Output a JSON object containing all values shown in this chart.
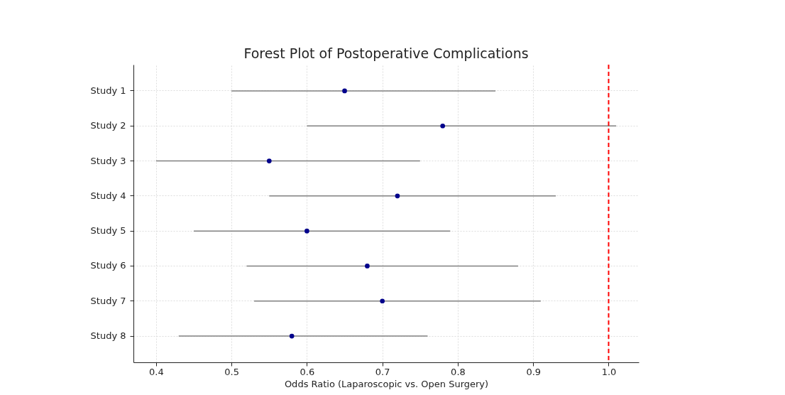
{
  "chart_data": {
    "type": "scatter",
    "orientation": "horizontal",
    "title": "Forest Plot of Postoperative Complications",
    "xlabel": "Odds Ratio (Laparoscopic vs. Open Surgery)",
    "categories": [
      "Study 1",
      "Study 2",
      "Study 3",
      "Study 4",
      "Study 5",
      "Study 6",
      "Study 7",
      "Study 8"
    ],
    "color": "#00008b",
    "values": [
      0.65,
      0.78,
      0.55,
      0.72,
      0.6,
      0.68,
      0.7,
      0.58
    ],
    "errors": [
      [
        0.5,
        0.85
      ],
      [
        0.6,
        1.01
      ],
      [
        0.4,
        0.75
      ],
      [
        0.55,
        0.93
      ],
      [
        0.45,
        0.79
      ],
      [
        0.52,
        0.88
      ],
      [
        0.53,
        0.91
      ],
      [
        0.43,
        0.76
      ]
    ],
    "xlim": [
      0.37,
      1.04
    ],
    "xticks": [
      0.4,
      0.5,
      0.6,
      0.7,
      0.8,
      0.9,
      {
        "value": 1.0,
        "label": "1.0"
      }
    ],
    "ref_lines": [
      {
        "axis": "x",
        "value": 1.0,
        "color": "#ff0000",
        "line_style": "dashed"
      }
    ],
    "grid": true,
    "marker": "circle"
  }
}
